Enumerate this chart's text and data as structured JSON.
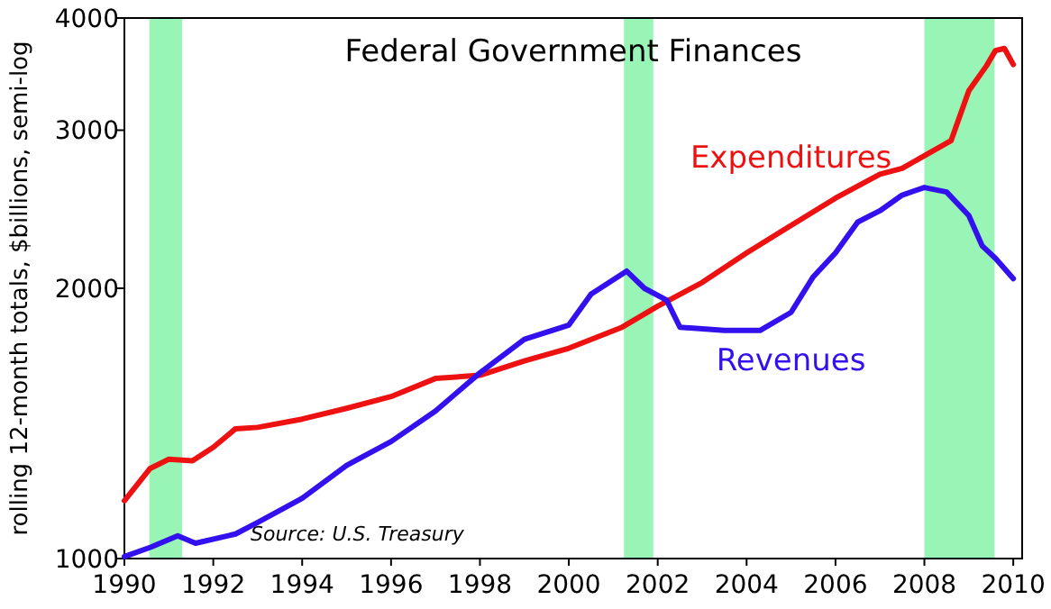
{
  "chart_data": {
    "type": "line",
    "title": "Federal Government Finances",
    "ylabel": "rolling 12-month totals, $billions, semi-log",
    "xlim": [
      1990,
      2010.2
    ],
    "xticks": [
      1990,
      1992,
      1994,
      1996,
      1998,
      2000,
      2002,
      2004,
      2006,
      2008,
      2010
    ],
    "ylim": [
      1000,
      4000
    ],
    "yticks": [
      1000,
      2000,
      3000,
      4000
    ],
    "log": "y",
    "grid": false,
    "legend": false,
    "annotations": [
      "Source: U.S. Treasury"
    ],
    "bands": [
      {
        "axis": "x",
        "from": 1990.56,
        "to": 1991.3,
        "color": "#99f5b5"
      },
      {
        "axis": "x",
        "from": 2001.24,
        "to": 2001.9,
        "color": "#99f5b5"
      },
      {
        "axis": "x",
        "from": 2008.0,
        "to": 2009.58,
        "color": "#99f5b5"
      }
    ],
    "series": [
      {
        "name": "Expenditures",
        "color": "#ee1111",
        "x": [
          1990,
          1990.58,
          1991.0,
          1991.53,
          1992,
          1992.5,
          1993,
          1994,
          1995,
          1996,
          1997,
          1998,
          1999,
          2000,
          2001.2,
          2002,
          2003,
          2004,
          2005,
          2006,
          2007,
          2007.5,
          2008,
          2008.6,
          2009,
          2009.4,
          2009.6,
          2009.8,
          2010
        ],
        "values": [
          1160,
          1260,
          1290,
          1285,
          1330,
          1395,
          1400,
          1430,
          1470,
          1515,
          1587,
          1600,
          1660,
          1715,
          1810,
          1910,
          2030,
          2190,
          2350,
          2520,
          2680,
          2720,
          2810,
          2920,
          3320,
          3540,
          3680,
          3700,
          3550
        ]
      },
      {
        "name": "Revenues",
        "color": "#3311ee",
        "x": [
          1990,
          1990.6,
          1991.2,
          1991.6,
          1992.5,
          1993,
          1994,
          1995,
          1996,
          1997,
          1998,
          1999,
          2000,
          2000.5,
          2001.3,
          2001.7,
          2002.2,
          2002.5,
          2003.5,
          2004.3,
          2005,
          2005.5,
          2006,
          2006.5,
          2007,
          2007.5,
          2008,
          2008.5,
          2009,
          2009.3,
          2009.6,
          2010
        ],
        "values": [
          1005,
          1030,
          1060,
          1040,
          1065,
          1097,
          1167,
          1270,
          1350,
          1460,
          1610,
          1755,
          1820,
          1970,
          2090,
          2000,
          1940,
          1810,
          1795,
          1795,
          1880,
          2060,
          2190,
          2370,
          2440,
          2540,
          2590,
          2560,
          2410,
          2230,
          2160,
          2050
        ]
      }
    ]
  }
}
